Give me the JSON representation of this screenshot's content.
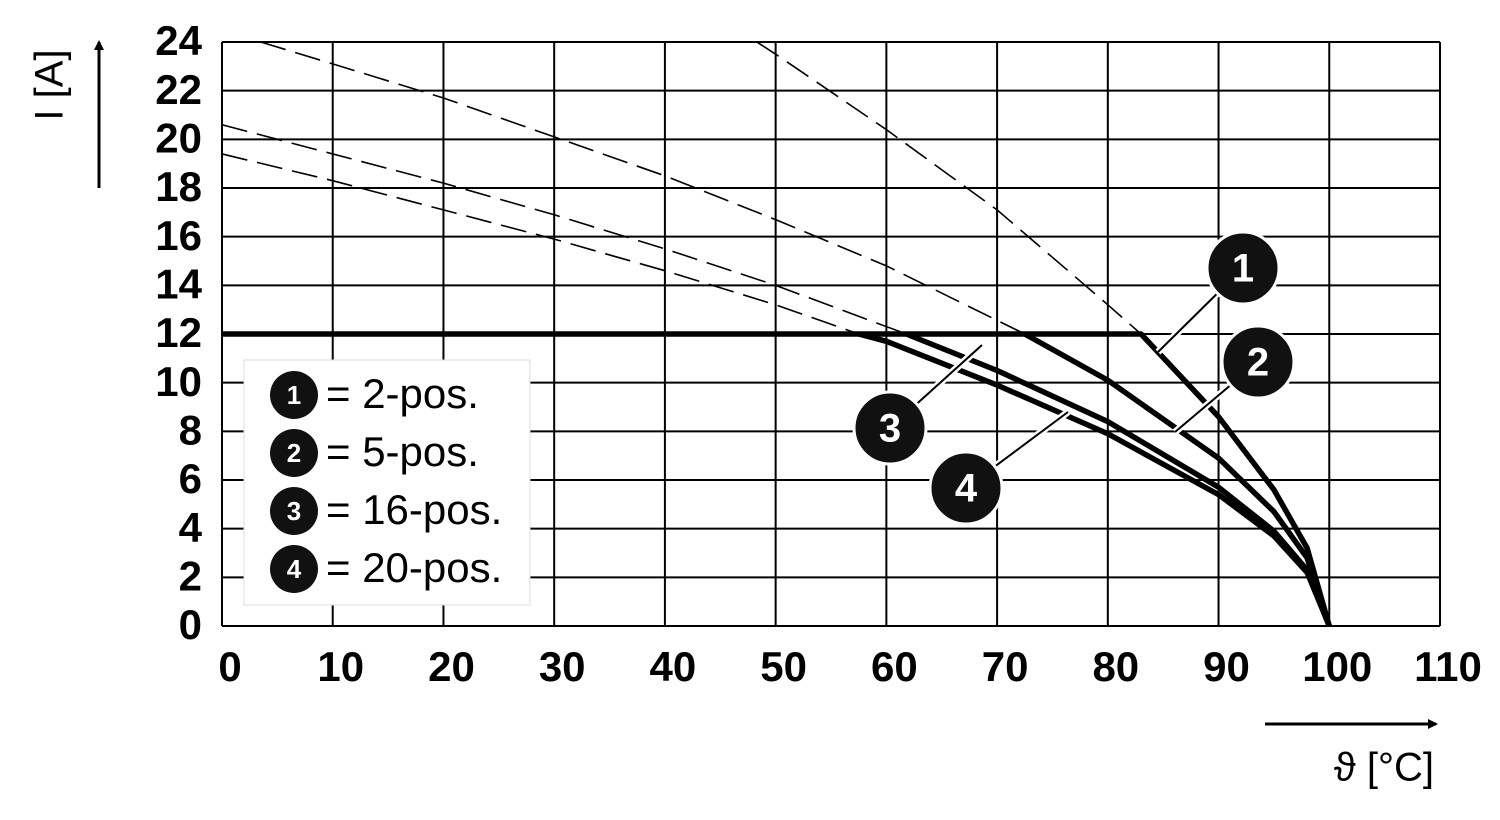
{
  "chart_data": {
    "type": "line",
    "xlabel": "ϑ [°C]",
    "ylabel": "I [A]",
    "xlim": [
      0,
      110
    ],
    "xticks": [
      0,
      10,
      20,
      30,
      40,
      50,
      60,
      70,
      80,
      90,
      100,
      110
    ],
    "ylim": [
      0,
      24
    ],
    "yticks": [
      0,
      2,
      4,
      6,
      8,
      10,
      12,
      14,
      16,
      18,
      20,
      22,
      24
    ],
    "grid": true,
    "series": [
      {
        "label": "1",
        "name": "= 2-pos.",
        "color": "#000000",
        "solid_x": [
          0,
          83,
          90,
          95,
          98,
          100
        ],
        "solid": [
          12,
          12,
          8.6,
          5.6,
          3.2,
          0
        ],
        "dashed_x": [
          48.3,
          50,
          60,
          70,
          80,
          83
        ],
        "dashed": [
          24,
          23.5,
          20.4,
          17.1,
          13.2,
          12
        ]
      },
      {
        "label": "2",
        "name": "= 5-pos.",
        "color": "#000000",
        "solid_x": [
          72.5,
          80,
          90,
          95,
          98,
          100
        ],
        "solid": [
          12,
          10.1,
          6.9,
          4.7,
          2.8,
          0
        ],
        "dashed_x": [
          3.5,
          10,
          20,
          30,
          40,
          50,
          60,
          72.5
        ],
        "dashed": [
          24,
          23.1,
          21.7,
          20.1,
          18.5,
          16.7,
          14.8,
          12
        ]
      },
      {
        "label": "3",
        "name": "= 16-pos.",
        "color": "#000000",
        "solid_x": [
          61.8,
          70,
          80,
          90,
          95,
          98,
          100
        ],
        "solid": [
          12,
          10.5,
          8.4,
          5.7,
          3.9,
          2.3,
          0
        ],
        "dashed_x": [
          0,
          10,
          20,
          30,
          40,
          50,
          61.8
        ],
        "dashed": [
          20.6,
          19.4,
          18.2,
          16.9,
          15.5,
          14.0,
          12
        ]
      },
      {
        "label": "4",
        "name": "= 20-pos.",
        "color": "#000000",
        "solid_x": [
          57.5,
          60,
          70,
          80,
          90,
          95,
          98,
          100
        ],
        "solid": [
          12,
          11.7,
          9.9,
          7.9,
          5.4,
          3.7,
          2.2,
          0
        ],
        "dashed_x": [
          0,
          10,
          20,
          30,
          40,
          50,
          57.5
        ],
        "dashed": [
          19.4,
          18.3,
          17.1,
          15.9,
          14.6,
          13.2,
          12
        ]
      }
    ]
  }
}
